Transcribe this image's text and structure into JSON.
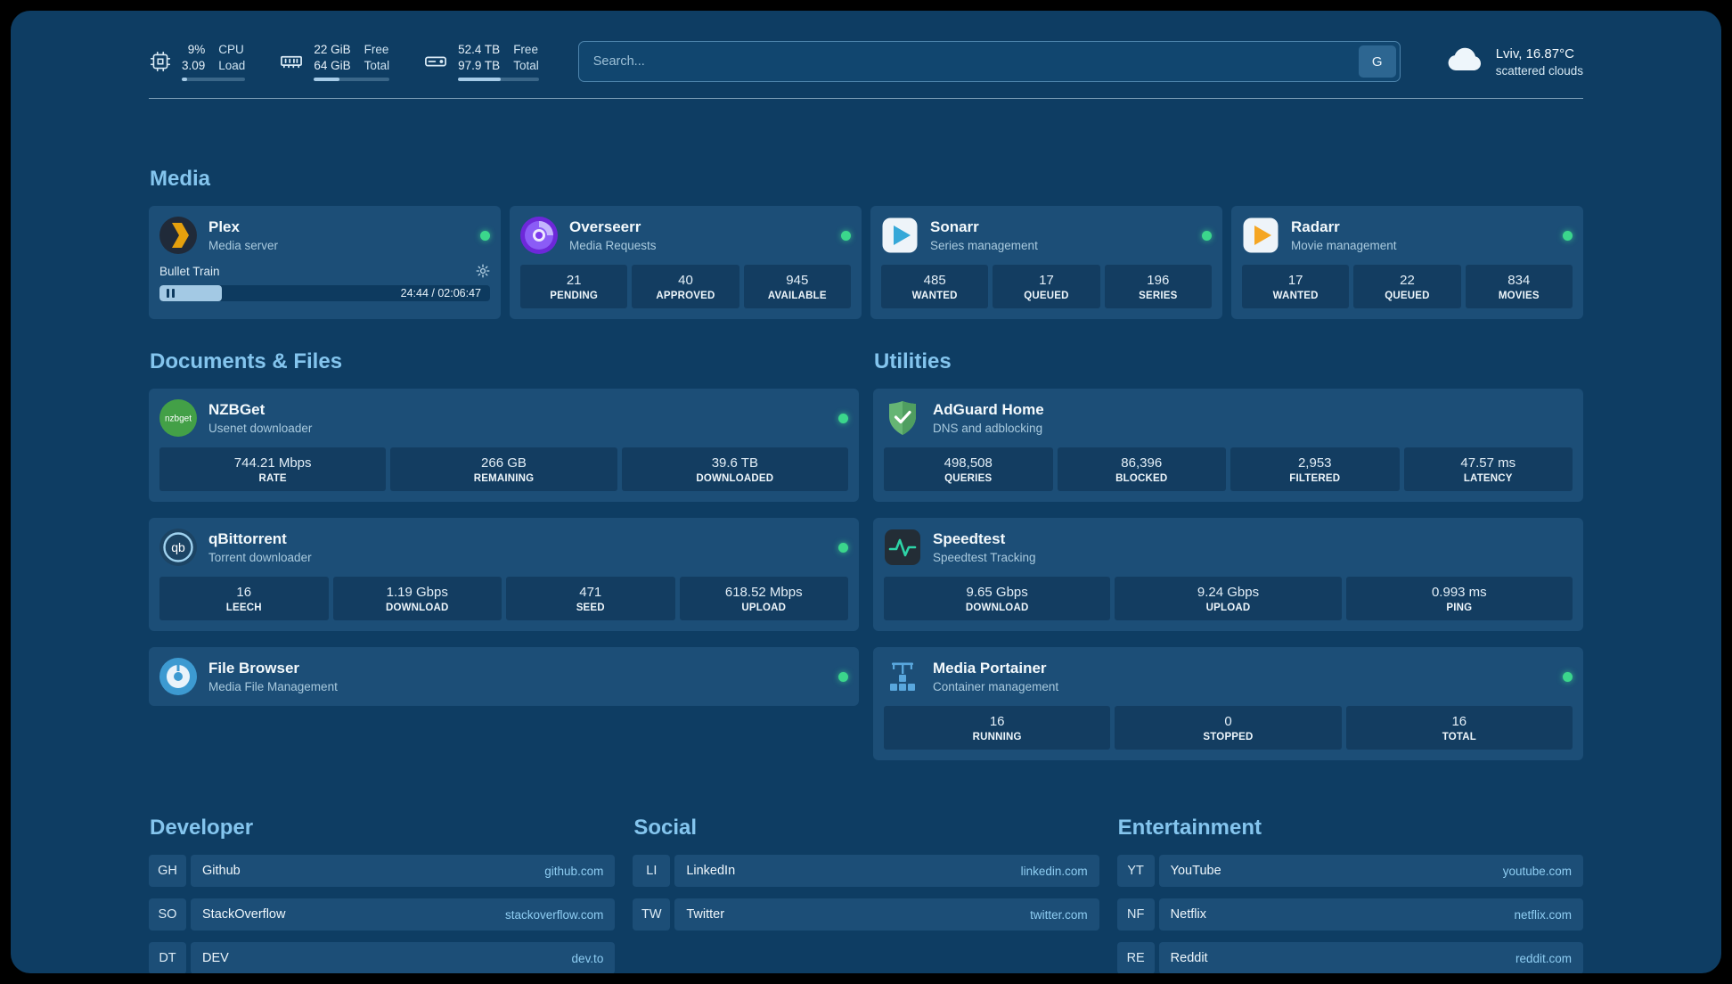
{
  "colors": {
    "panel_bg": "#0e3d63",
    "card_bg": "#1c4e77",
    "accent_heading": "#84c5ee",
    "status_online": "#3bd68c",
    "link": "#8ecdf2"
  },
  "topbar": {
    "resources": [
      {
        "name": "cpu",
        "icon": "cpu-icon",
        "values": [
          "9%",
          "3.09"
        ],
        "labels": [
          "CPU",
          "Load"
        ],
        "progress": 9
      },
      {
        "name": "memory",
        "icon": "memory-icon",
        "values": [
          "22 GiB",
          "64 GiB"
        ],
        "labels": [
          "Free",
          "Total"
        ],
        "progress": 34
      },
      {
        "name": "disk",
        "icon": "disk-icon",
        "values": [
          "52.4 TB",
          "97.9 TB"
        ],
        "labels": [
          "Free",
          "Total"
        ],
        "progress": 53
      }
    ],
    "search": {
      "placeholder": "Search...",
      "provider_button": "G"
    },
    "weather": {
      "icon": "cloud-icon",
      "location": "Lviv, 16.87°C",
      "condition": "scattered clouds"
    }
  },
  "media": {
    "title": "Media",
    "cards": [
      {
        "icon": "plex-logo",
        "title": "Plex",
        "subtitle": "Media server",
        "online": true,
        "now_playing": {
          "track": "Bullet Train",
          "time": "24:44 / 02:06:47",
          "progress": 19
        }
      },
      {
        "icon": "overseerr-logo",
        "title": "Overseerr",
        "subtitle": "Media Requests",
        "online": true,
        "stats": [
          {
            "value": "21",
            "label": "PENDING"
          },
          {
            "value": "40",
            "label": "APPROVED"
          },
          {
            "value": "945",
            "label": "AVAILABLE"
          }
        ]
      },
      {
        "icon": "sonarr-logo",
        "title": "Sonarr",
        "subtitle": "Series management",
        "online": true,
        "stats": [
          {
            "value": "485",
            "label": "WANTED"
          },
          {
            "value": "17",
            "label": "QUEUED"
          },
          {
            "value": "196",
            "label": "SERIES"
          }
        ]
      },
      {
        "icon": "radarr-logo",
        "title": "Radarr",
        "subtitle": "Movie management",
        "online": true,
        "stats": [
          {
            "value": "17",
            "label": "WANTED"
          },
          {
            "value": "22",
            "label": "QUEUED"
          },
          {
            "value": "834",
            "label": "MOVIES"
          }
        ]
      }
    ]
  },
  "documents": {
    "title": "Documents & Files",
    "cards": [
      {
        "icon": "nzbget-logo",
        "title": "NZBGet",
        "subtitle": "Usenet downloader",
        "online": true,
        "stats": [
          {
            "value": "744.21 Mbps",
            "label": "RATE"
          },
          {
            "value": "266 GB",
            "label": "REMAINING"
          },
          {
            "value": "39.6 TB",
            "label": "DOWNLOADED"
          }
        ]
      },
      {
        "icon": "qbittorrent-logo",
        "title": "qBittorrent",
        "subtitle": "Torrent downloader",
        "online": true,
        "stats": [
          {
            "value": "16",
            "label": "LEECH"
          },
          {
            "value": "1.19 Gbps",
            "label": "DOWNLOAD"
          },
          {
            "value": "471",
            "label": "SEED"
          },
          {
            "value": "618.52 Mbps",
            "label": "UPLOAD"
          }
        ]
      },
      {
        "icon": "filebrowser-logo",
        "title": "File Browser",
        "subtitle": "Media File Management",
        "online": true
      }
    ]
  },
  "utilities": {
    "title": "Utilities",
    "cards": [
      {
        "icon": "adguard-logo",
        "title": "AdGuard Home",
        "subtitle": "DNS and adblocking",
        "online": false,
        "stats": [
          {
            "value": "498,508",
            "label": "QUERIES"
          },
          {
            "value": "86,396",
            "label": "BLOCKED"
          },
          {
            "value": "2,953",
            "label": "FILTERED"
          },
          {
            "value": "47.57 ms",
            "label": "LATENCY"
          }
        ]
      },
      {
        "icon": "speedtest-logo",
        "title": "Speedtest",
        "subtitle": "Speedtest Tracking",
        "online": false,
        "stats": [
          {
            "value": "9.65 Gbps",
            "label": "DOWNLOAD"
          },
          {
            "value": "9.24 Gbps",
            "label": "UPLOAD"
          },
          {
            "value": "0.993 ms",
            "label": "PING"
          }
        ]
      },
      {
        "icon": "portainer-logo",
        "title": "Media Portainer",
        "subtitle": "Container management",
        "online": true,
        "stats": [
          {
            "value": "16",
            "label": "RUNNING"
          },
          {
            "value": "0",
            "label": "STOPPED"
          },
          {
            "value": "16",
            "label": "TOTAL"
          }
        ]
      }
    ]
  },
  "bookmarks": {
    "groups": [
      {
        "title": "Developer",
        "items": [
          {
            "abbr": "GH",
            "name": "Github",
            "url": "github.com"
          },
          {
            "abbr": "SO",
            "name": "StackOverflow",
            "url": "stackoverflow.com"
          },
          {
            "abbr": "DT",
            "name": "DEV",
            "url": "dev.to"
          }
        ]
      },
      {
        "title": "Social",
        "items": [
          {
            "abbr": "LI",
            "name": "LinkedIn",
            "url": "linkedin.com"
          },
          {
            "abbr": "TW",
            "name": "Twitter",
            "url": "twitter.com"
          }
        ]
      },
      {
        "title": "Entertainment",
        "items": [
          {
            "abbr": "YT",
            "name": "YouTube",
            "url": "youtube.com"
          },
          {
            "abbr": "NF",
            "name": "Netflix",
            "url": "netflix.com"
          },
          {
            "abbr": "RE",
            "name": "Reddit",
            "url": "reddit.com"
          }
        ]
      }
    ]
  }
}
